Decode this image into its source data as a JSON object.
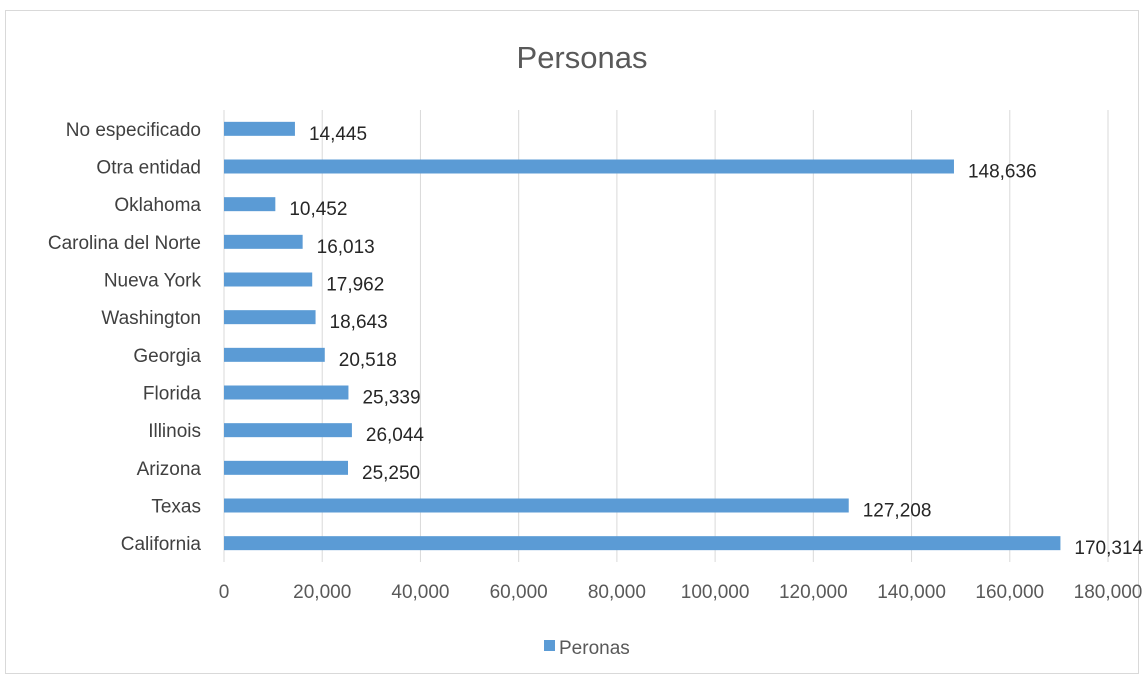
{
  "chart_data": {
    "type": "bar",
    "orientation": "horizontal",
    "title": "Personas",
    "categories": [
      "No especificado",
      "Otra entidad",
      "Oklahoma",
      "Carolina del Norte",
      "Nueva York",
      "Washington",
      "Georgia",
      "Florida",
      "Illinois",
      "Arizona",
      "Texas",
      "California"
    ],
    "series": [
      {
        "name": "Peronas",
        "values": [
          14445,
          148636,
          10452,
          16013,
          17962,
          18643,
          20518,
          25339,
          26044,
          25250,
          127208,
          170314
        ],
        "labels": [
          "14,445",
          "148,636",
          "10,452",
          "16,013",
          "17,962",
          "18,643",
          "20,518",
          "25,339",
          "26,044",
          "25,250",
          "127,208",
          "170,314"
        ]
      }
    ],
    "x_ticks": [
      "0",
      "20,000",
      "40,000",
      "60,000",
      "80,000",
      "100,000",
      "120,000",
      "140,000",
      "160,000",
      "180,000"
    ],
    "xlim": [
      0,
      180000
    ],
    "grid": "vertical",
    "legend": "bottom",
    "bar_color": "#5b9bd5"
  }
}
